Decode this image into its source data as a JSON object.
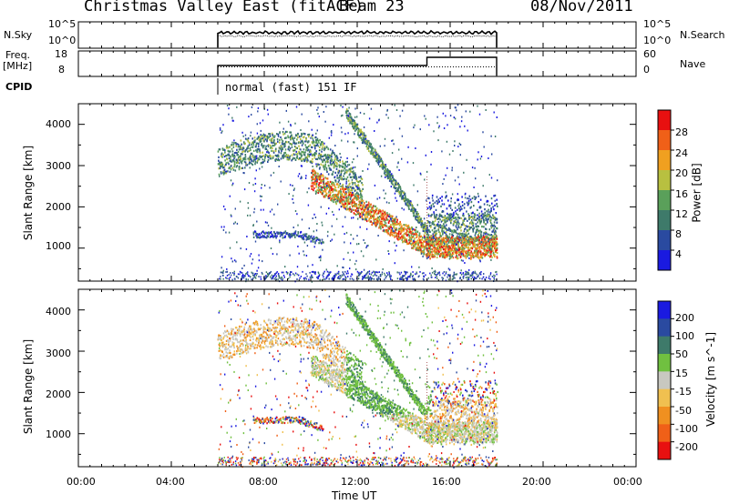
{
  "header": {
    "station": "Christmas Valley East (fitACF)",
    "beam": "Beam 23",
    "date": "08/Nov/2011"
  },
  "panels": {
    "nsky_label": "N.Sky",
    "nsky_ticks": [
      "10^5",
      "10^0"
    ],
    "nsearch_ticks": [
      "10^5",
      "10^0"
    ],
    "nsearch_label": "N.Search",
    "freq_label": "Freq.",
    "freq_unit": "[MHz]",
    "freq_ticks": [
      "18",
      "8"
    ],
    "nave_ticks": [
      "60",
      "0"
    ],
    "nave_label": "Nave",
    "cpid_label": "CPID",
    "cpid_value": "normal (fast) 151 IF"
  },
  "chart_data": [
    {
      "type": "heatmap",
      "name": "power",
      "ylabel": "Slant Range [km]",
      "y_ticks": [
        1000,
        2000,
        3000,
        4000
      ],
      "ylim": [
        200,
        4500
      ],
      "colorbar_label": "Power [dB]",
      "colorbar_ticks": [
        4,
        8,
        12,
        16,
        20,
        24,
        28
      ],
      "colorbar_range": [
        0,
        30
      ],
      "colors": [
        "#1a1ae0",
        "#2a4aa0",
        "#3e7a6a",
        "#5aa05a",
        "#b8c040",
        "#f0a020",
        "#f06018",
        "#e81010"
      ]
    },
    {
      "type": "heatmap",
      "name": "velocity",
      "ylabel": "Slant Range [km]",
      "y_ticks": [
        1000,
        2000,
        3000,
        4000
      ],
      "ylim": [
        200,
        4500
      ],
      "colorbar_label": "Velocity [m s^-1]",
      "colorbar_ticks": [
        200,
        100,
        50,
        15,
        -15,
        -50,
        -100,
        -200
      ],
      "colors": [
        "#1a1ae0",
        "#2a4aa0",
        "#3e7a6a",
        "#70c040",
        "#c8c8c0",
        "#f0c050",
        "#f09020",
        "#f06018",
        "#e81010"
      ]
    }
  ],
  "xaxis": {
    "label": "Time UT",
    "ticks": [
      "00:00",
      "04:00",
      "08:00",
      "12:00",
      "16:00",
      "20:00",
      "00:00"
    ],
    "xlim_hours": [
      0,
      24
    ],
    "data_hours": [
      6,
      18
    ],
    "mode_change_hour": 15
  }
}
